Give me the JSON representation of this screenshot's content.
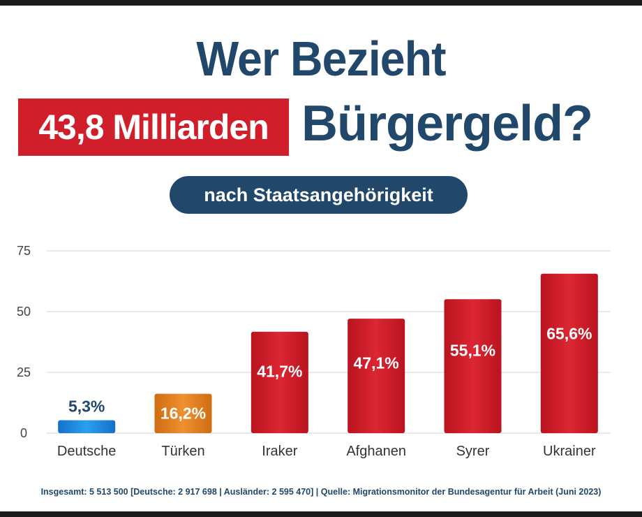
{
  "header": {
    "title_line1": "Wer Bezieht",
    "amount": "43,8 Milliarden",
    "title_line2": "Bürgergeld?",
    "subtitle": "nach Staatsangehörigkeit"
  },
  "footnote": "Insgesamt: 5 513 500 [Deutsche: 2 917 698 | Ausländer: 2 595 470] | Quelle: Migrationsmonitor der Bundesagentur für Arbeit (Juni 2023)",
  "colors": {
    "navy": "#21486b",
    "red": "#d01f2b",
    "blue": "#1f8ee0",
    "orange": "#e6821e",
    "grid": "#dcdcdc"
  },
  "chart_data": {
    "type": "bar",
    "categories": [
      "Deutsche",
      "Türken",
      "Iraker",
      "Afghanen",
      "Syrer",
      "Ukrainer"
    ],
    "values": [
      5.3,
      16.2,
      41.7,
      47.1,
      55.1,
      65.6
    ],
    "value_labels": [
      "5,3%",
      "16,2%",
      "41,7%",
      "47,1%",
      "55,1%",
      "65,6%"
    ],
    "bar_colors": [
      "#1f8ee0",
      "#e6821e",
      "#d01f2b",
      "#d01f2b",
      "#d01f2b",
      "#d01f2b"
    ],
    "ylim": [
      0,
      75
    ],
    "yticks": [
      "0",
      "25",
      "50",
      "75"
    ],
    "ytick_values": [
      0,
      25,
      50,
      75
    ],
    "grid": true,
    "legend": "none"
  }
}
